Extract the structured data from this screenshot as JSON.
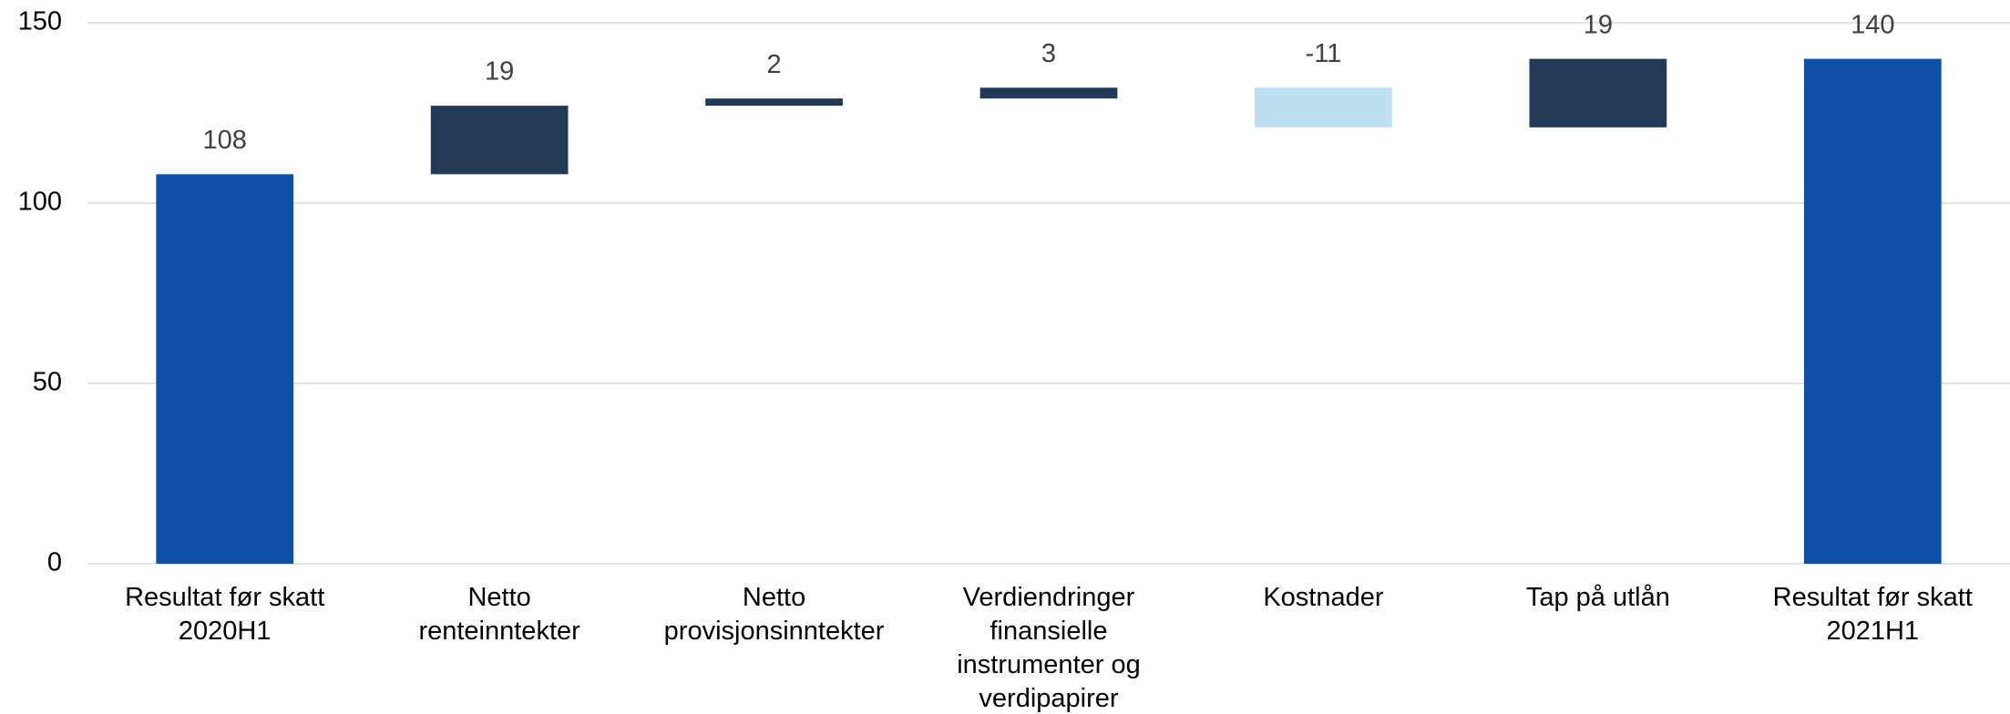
{
  "chart_data": {
    "type": "waterfall",
    "categories": [
      "Resultat før skatt 2020H1",
      "Netto renteinntekter",
      "Netto provisjonsinntekter",
      "Verdiendringer finansielle instrumenter og verdipapirer",
      "Kostnader",
      "Tap på utlån",
      "Resultat før skatt 2021H1"
    ],
    "values": [
      108,
      19,
      2,
      3,
      -11,
      19,
      140
    ],
    "total_color": "#0d4ea6",
    "increase_color": "#223a56",
    "decrease_color": "#bddff0",
    "ylim": [
      0,
      150
    ],
    "yticks": [
      0,
      50,
      100,
      150
    ],
    "grid": true
  }
}
